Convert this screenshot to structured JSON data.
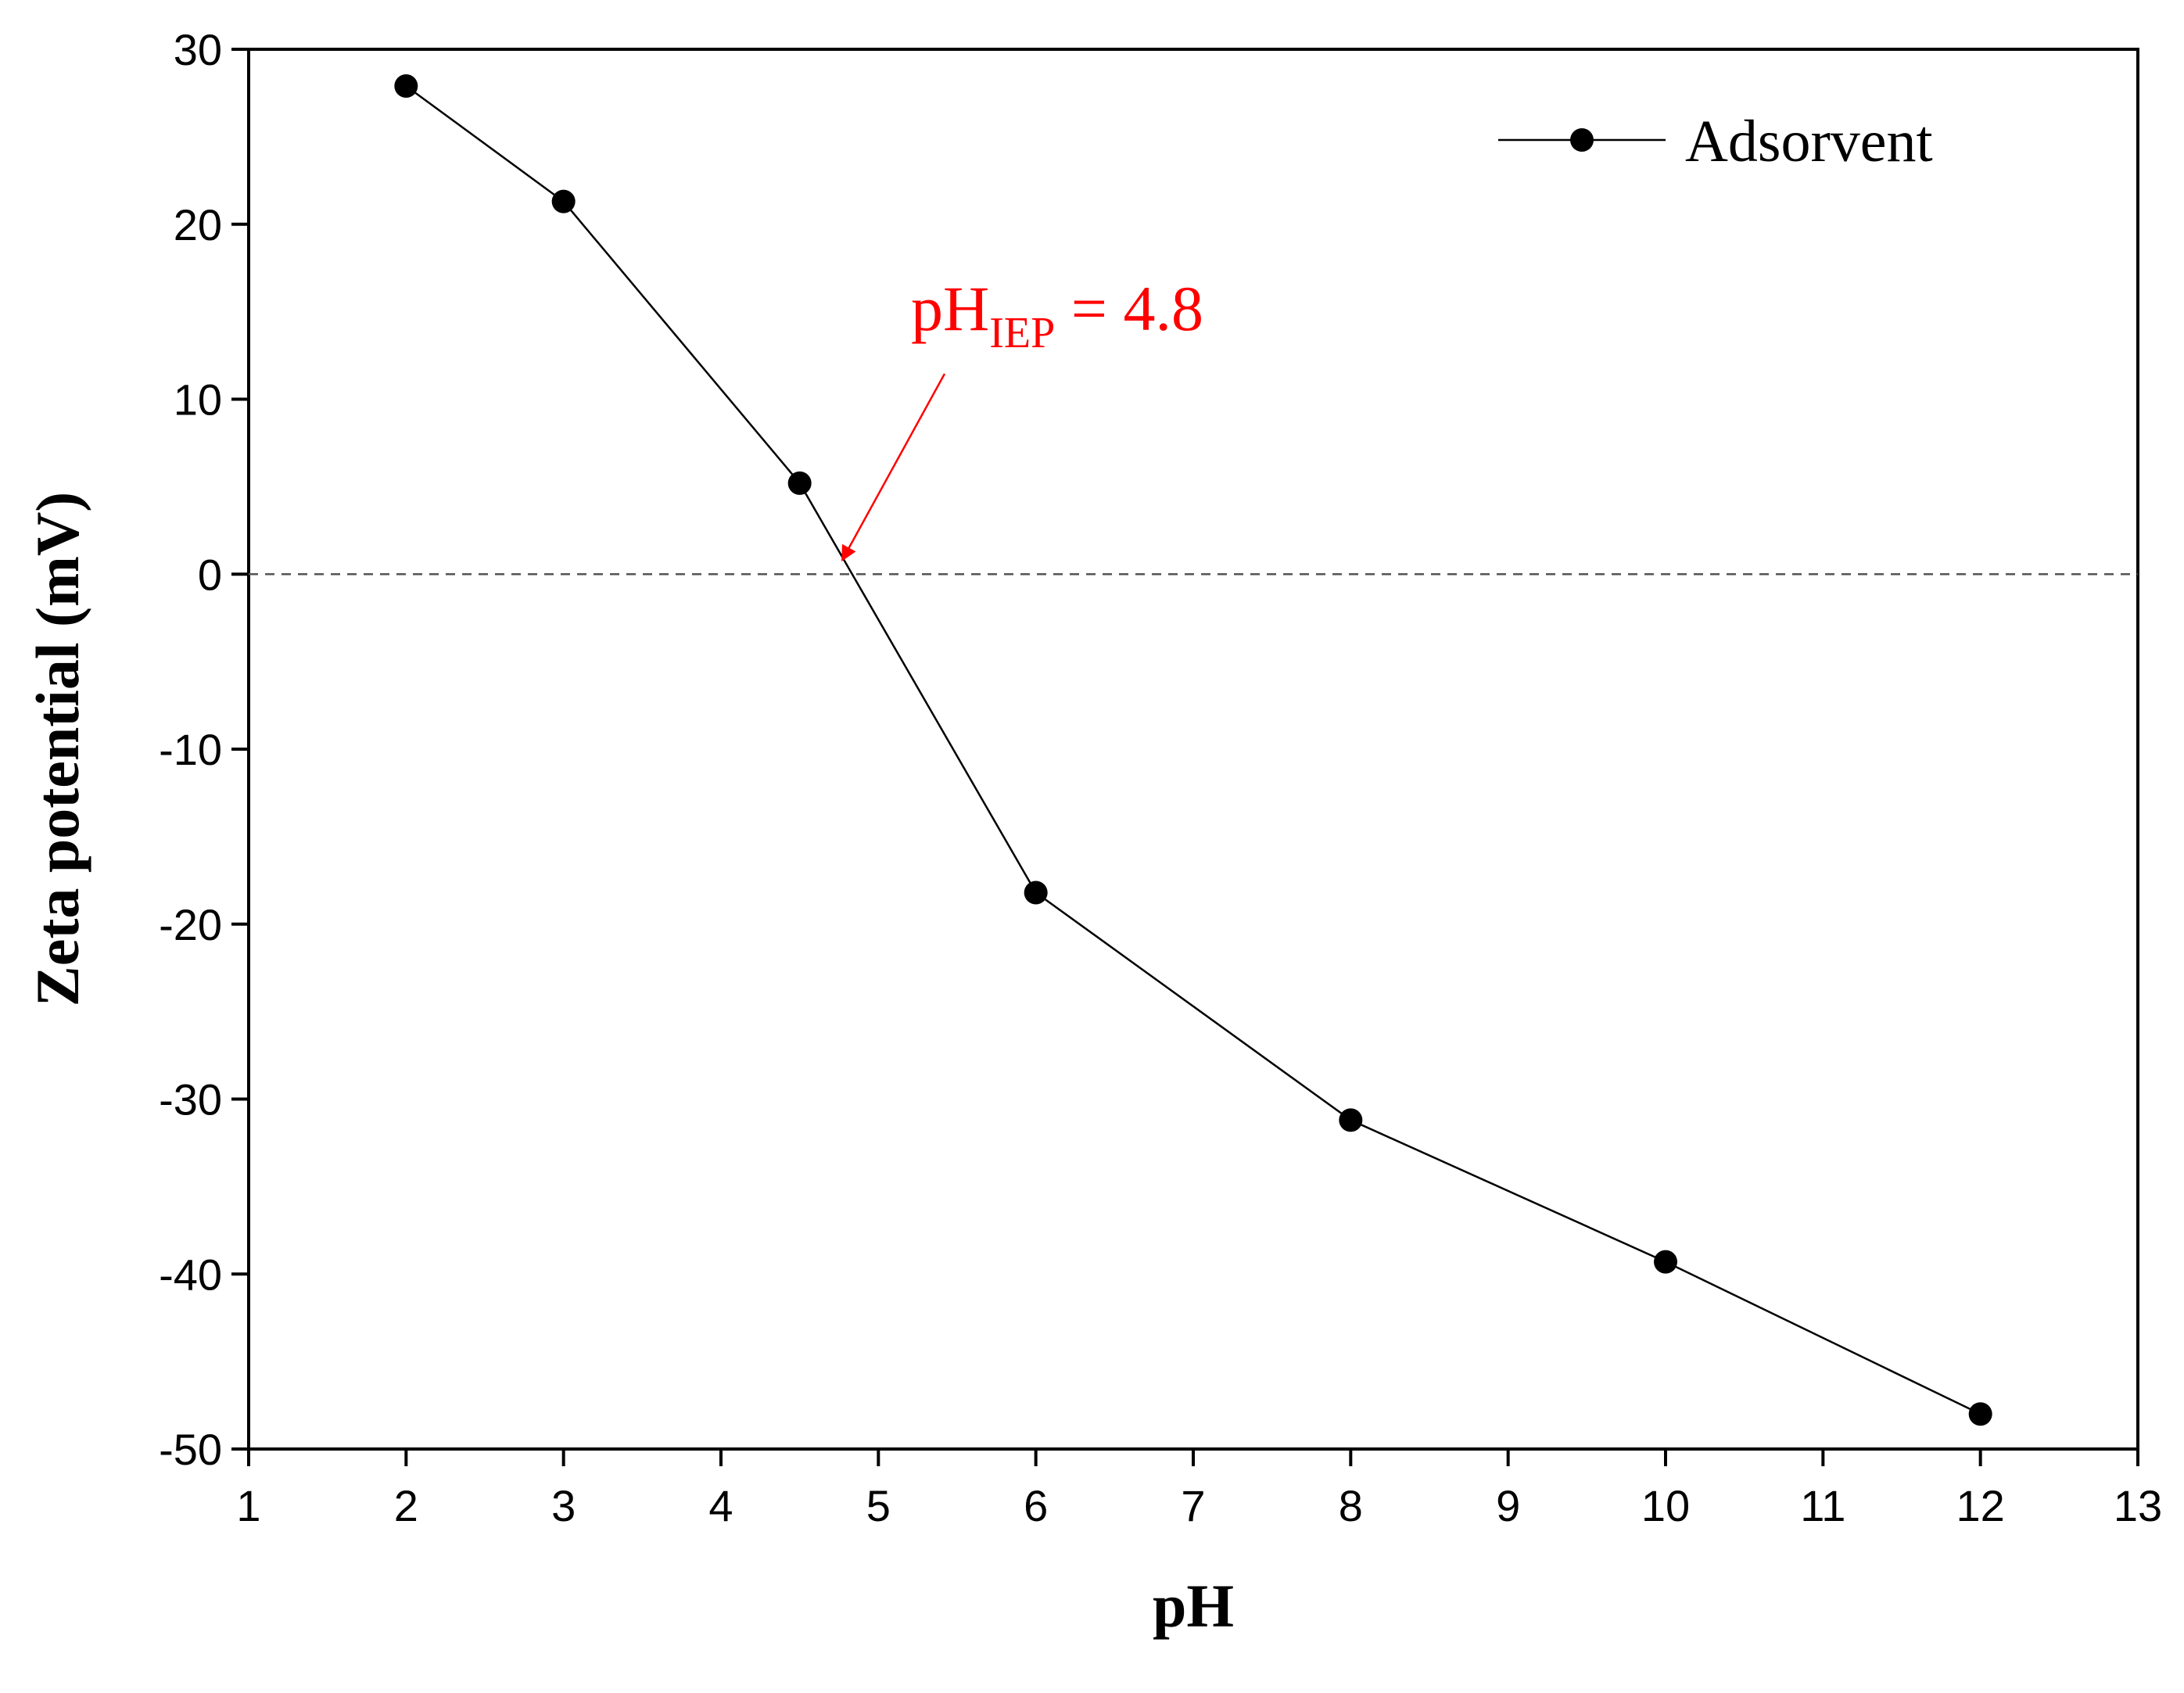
{
  "chart_data": {
    "type": "line",
    "title": "",
    "xlabel": "pH",
    "ylabel": "Zeta potential (mV)",
    "xlim": [
      1,
      13
    ],
    "ylim": [
      -50,
      30
    ],
    "xticks": [
      "1",
      "2",
      "3",
      "4",
      "5",
      "6",
      "7",
      "8",
      "9",
      "10",
      "11",
      "12",
      "13"
    ],
    "yticks": [
      "30",
      "20",
      "10",
      "0",
      "-10",
      "-20",
      "-30",
      "-40",
      "-50"
    ],
    "grid": false,
    "legend_position": "top-right",
    "series": [
      {
        "name": "Adsorvent",
        "x": [
          2,
          3,
          4.5,
          6,
          8,
          10,
          12
        ],
        "y": [
          27.9,
          21.3,
          5.2,
          -18.2,
          -31.2,
          -39.3,
          -48.0
        ],
        "color": "#000000",
        "marker": "circle"
      }
    ],
    "reference_line": {
      "y": 0,
      "style": "dashed",
      "color": "#555555"
    },
    "annotation": {
      "main": "pH",
      "subscript": "IEP",
      "suffix": " = 4.8",
      "point": {
        "x": 4.8,
        "y": 0
      },
      "color": "#ff0000"
    }
  }
}
